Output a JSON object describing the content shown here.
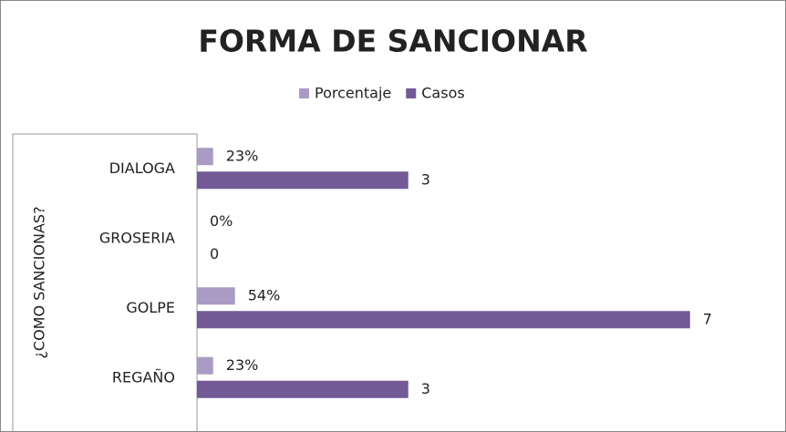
{
  "chart_data": {
    "type": "barh",
    "title": "FORMA DE SANCIONAR",
    "y_label": "¿COMO SANCIONAS?",
    "categories": [
      "DIALOGA",
      "GROSERIA",
      "GOLPE",
      "REGAÑO"
    ],
    "series": [
      {
        "name": "Porcentaje",
        "color": "#a99bc4",
        "values": [
          0.23,
          0,
          0.54,
          0.23
        ],
        "value_labels": [
          "23%",
          "0%",
          "54%",
          "23%"
        ]
      },
      {
        "name": "Casos",
        "color": "#725a96",
        "values": [
          3,
          0,
          7,
          3
        ]
      }
    ],
    "xlim": [
      0,
      8
    ],
    "legend": "top"
  }
}
